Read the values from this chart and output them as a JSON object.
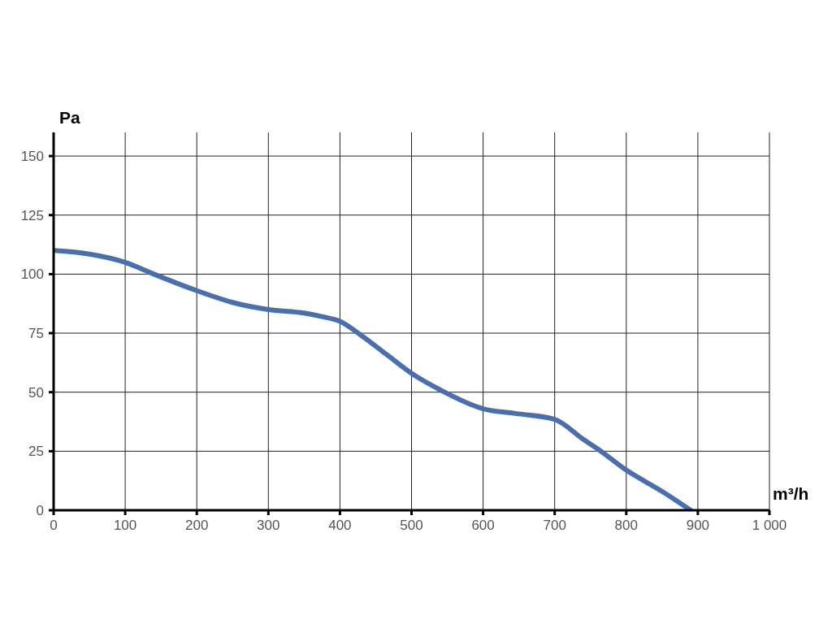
{
  "chart_data": {
    "type": "line",
    "xlabel": "m³/h",
    "ylabel": "Pa",
    "x": [
      0,
      50,
      100,
      140,
      200,
      250,
      300,
      350,
      375,
      400,
      430,
      465,
      500,
      540,
      600,
      645,
      700,
      740,
      760,
      800,
      850,
      890
    ],
    "series": [
      {
        "color": "#4a6fae",
        "values": [
          110,
          108.5,
          105,
          100,
          93,
          88,
          85,
          83.5,
          82,
          80,
          74,
          66,
          58,
          51,
          43,
          41,
          38.5,
          30,
          26,
          17,
          8,
          0
        ]
      }
    ],
    "xlim": [
      0,
      1000
    ],
    "xticks": [
      0,
      100,
      200,
      300,
      400,
      500,
      600,
      700,
      800,
      900,
      {
        "value": 1000,
        "label": "1 000"
      }
    ],
    "ylim": [
      0,
      160
    ],
    "yticks": [
      0,
      25,
      50,
      75,
      100,
      125,
      150
    ],
    "grid": true
  }
}
